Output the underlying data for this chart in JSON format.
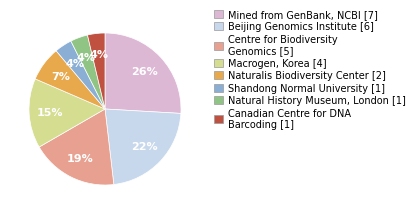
{
  "labels": [
    "Mined from GenBank, NCBI [7]",
    "Beijing Genomics Institute [6]",
    "Centre for Biodiversity\nGenomics [5]",
    "Macrogen, Korea [4]",
    "Naturalis Biodiversity Center [2]",
    "Shandong Normal University [1]",
    "Natural History Museum, London [1]",
    "Canadian Centre for DNA\nBarcoding [1]"
  ],
  "values": [
    7,
    6,
    5,
    4,
    2,
    1,
    1,
    1
  ],
  "colors": [
    "#ddb8d5",
    "#c8d8ec",
    "#e8a090",
    "#d4dd90",
    "#e8a84c",
    "#8aaed4",
    "#90c484",
    "#c05040"
  ],
  "pct_distance": 0.72,
  "startangle": 90,
  "legend_fontsize": 7,
  "pct_fontsize": 8
}
